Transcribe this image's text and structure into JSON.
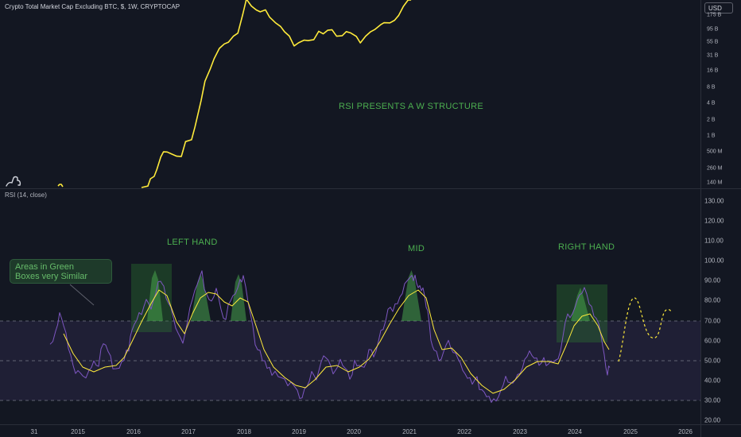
{
  "header": {
    "title": "Crypto Total Market Cap Excluding BTC, $, 1W, CRYPTOCAP",
    "currency": "USD"
  },
  "price_pane": {
    "axis_ticks": [
      "175 B",
      "95 B",
      "55 B",
      "31 B",
      "16 B",
      "8 B",
      "4 B",
      "2 B",
      "1 B",
      "500 M",
      "260 M",
      "140 M"
    ],
    "annotation": "RSI PRESENTS A W STRUCTURE",
    "line_color": "#ffeb3b"
  },
  "rsi_pane": {
    "label": "RSI (14, close)",
    "axis_ticks": [
      "130.00",
      "120.00",
      "110.00",
      "100.00",
      "90.00",
      "80.00",
      "70.00",
      "60.00",
      "50.00",
      "40.00",
      "30.00",
      "20.00"
    ],
    "upper_band": 70,
    "middle_band": 50,
    "lower_band": 30,
    "rsi_color": "#7e57c2",
    "ma_color": "#ffeb3b",
    "labels": {
      "left_hand": "LEFT HAND",
      "mid": "MID",
      "right_hand": "RIGHT HAND"
    },
    "callout_lines": [
      "Areas in Green",
      "Boxes very Similar"
    ]
  },
  "x_axis": [
    "31",
    "2015",
    "2016",
    "2017",
    "2018",
    "2019",
    "2020",
    "2021",
    "2022",
    "2023",
    "2024",
    "2025",
    "2026"
  ],
  "colors": {
    "background": "#131722",
    "annotation_green": "#4caf50",
    "band_fill": "#7e57c2"
  }
}
